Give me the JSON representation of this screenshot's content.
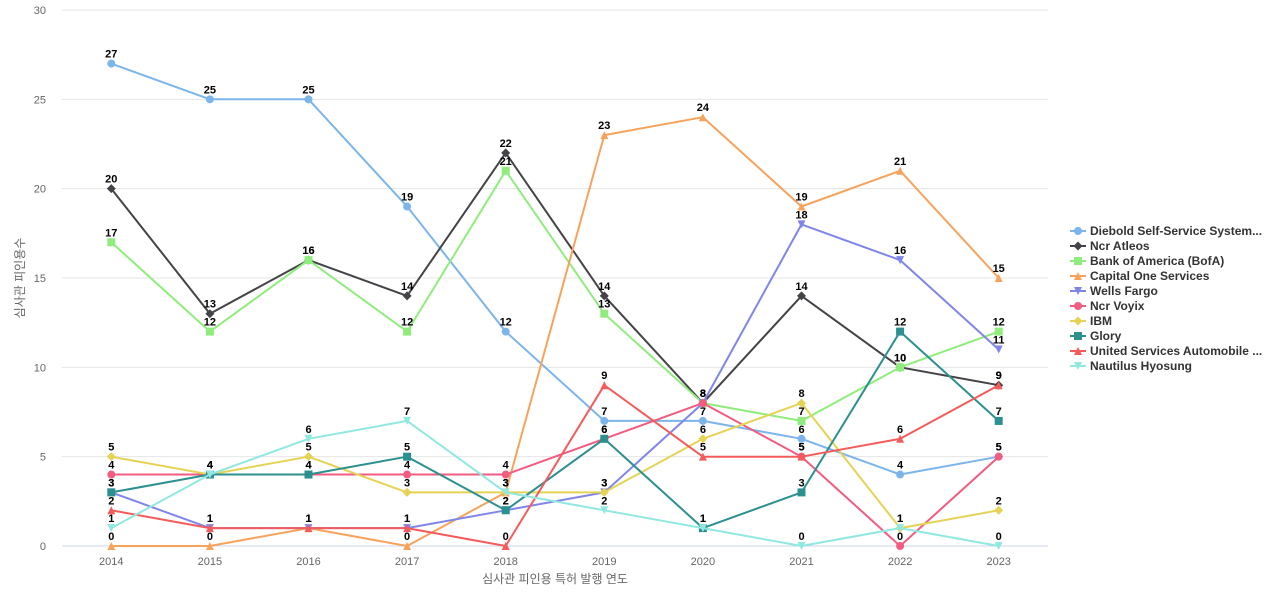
{
  "chart_data": {
    "type": "line",
    "xlabel": "심사관 피인용 특허 발행 연도",
    "ylabel": "심사관 피인용수",
    "x": [
      2014,
      2015,
      2016,
      2017,
      2018,
      2019,
      2020,
      2021,
      2022,
      2023
    ],
    "ylim": [
      0,
      30
    ],
    "yticks": [
      0,
      5,
      10,
      15,
      20,
      25,
      30
    ],
    "grid": "horizontal",
    "legend_position": "right",
    "data_labels": true,
    "series": [
      {
        "name": "Diebold Self-Service System...",
        "color": "#7cb5ec",
        "marker": "circle",
        "values": [
          27,
          25,
          25,
          19,
          12,
          7,
          7,
          6,
          4,
          5
        ]
      },
      {
        "name": "Ncr Atleos",
        "color": "#434348",
        "marker": "diamond",
        "values": [
          20,
          13,
          16,
          14,
          22,
          14,
          8,
          14,
          10,
          9
        ]
      },
      {
        "name": "Bank of America (BofA)",
        "color": "#90ed7d",
        "marker": "square",
        "values": [
          17,
          12,
          16,
          12,
          21,
          13,
          8,
          7,
          10,
          12
        ]
      },
      {
        "name": "Capital One Services",
        "color": "#f7a35c",
        "marker": "triangle",
        "values": [
          0,
          0,
          1,
          0,
          3,
          23,
          24,
          19,
          21,
          15
        ]
      },
      {
        "name": "Wells Fargo",
        "color": "#8085e9",
        "marker": "triangle-down",
        "values": [
          3,
          1,
          1,
          1,
          2,
          3,
          8,
          18,
          16,
          11
        ]
      },
      {
        "name": "Ncr Voyix",
        "color": "#f15c80",
        "marker": "circle",
        "values": [
          4,
          4,
          4,
          4,
          4,
          6,
          8,
          5,
          0,
          5
        ]
      },
      {
        "name": "IBM",
        "color": "#e4d354",
        "marker": "diamond",
        "values": [
          5,
          4,
          5,
          3,
          3,
          3,
          6,
          8,
          1,
          2
        ]
      },
      {
        "name": "Glory",
        "color": "#2b908f",
        "marker": "square",
        "values": [
          3,
          4,
          4,
          5,
          2,
          6,
          1,
          3,
          12,
          7
        ]
      },
      {
        "name": "United Services Automobile ...",
        "color": "#f45b5b",
        "marker": "triangle",
        "values": [
          2,
          1,
          1,
          1,
          0,
          9,
          5,
          5,
          6,
          9
        ]
      },
      {
        "name": "Nautilus Hyosung",
        "color": "#91e8e1",
        "marker": "triangle-down",
        "values": [
          1,
          4,
          6,
          7,
          3,
          2,
          1,
          0,
          1,
          0
        ]
      }
    ]
  }
}
